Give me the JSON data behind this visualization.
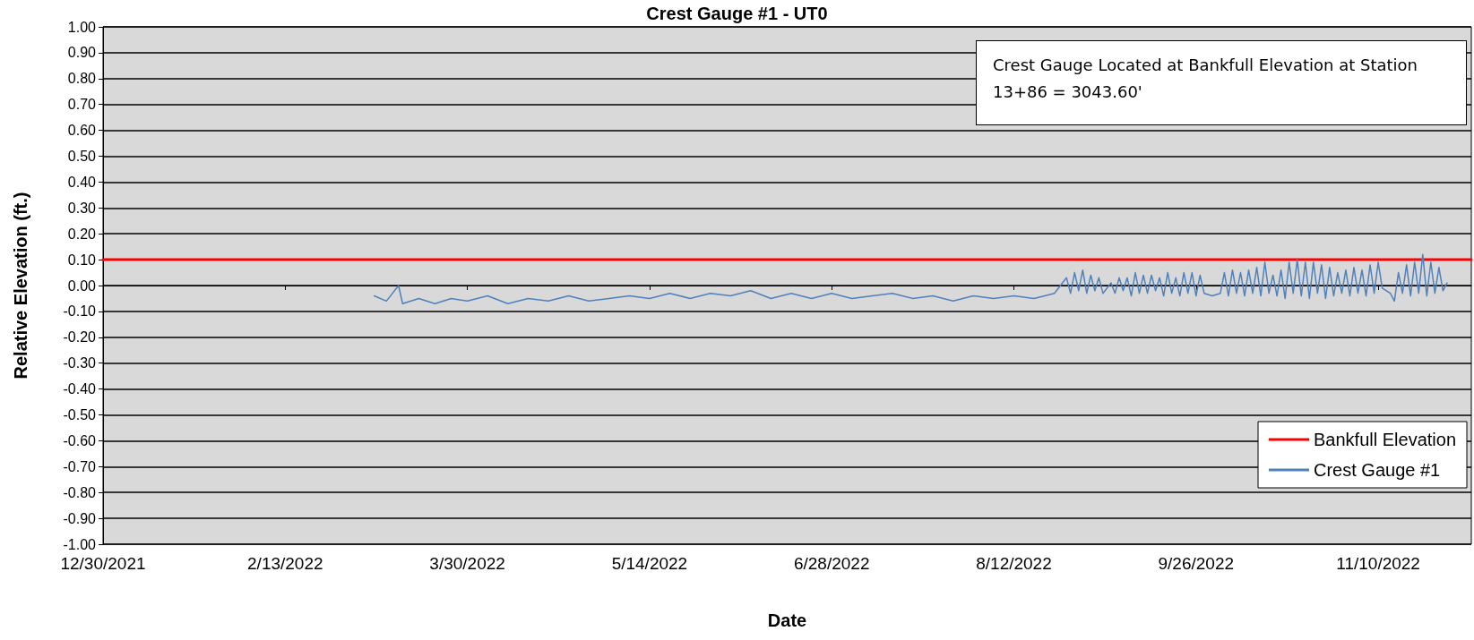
{
  "chart_data": {
    "type": "line",
    "title": "Crest Gauge #1 - UT0",
    "xlabel": "Date",
    "ylabel": "Relative Elevation (ft.)",
    "annotations": [
      "Crest Gauge Located at Bankfull Elevation at Station 13+86 = 3043.60'"
    ],
    "xlim": [
      "2021-12-30",
      "2022-12-03"
    ],
    "xticks": [
      {
        "value": "2021-12-30",
        "label": "12/30/2021"
      },
      {
        "value": "2022-02-13",
        "label": "2/13/2022"
      },
      {
        "value": "2022-03-30",
        "label": "3/30/2022"
      },
      {
        "value": "2022-05-14",
        "label": "5/14/2022"
      },
      {
        "value": "2022-06-28",
        "label": "6/28/2022"
      },
      {
        "value": "2022-08-12",
        "label": "8/12/2022"
      },
      {
        "value": "2022-09-26",
        "label": "9/26/2022"
      },
      {
        "value": "2022-11-10",
        "label": "11/10/2022"
      }
    ],
    "ylim": [
      -1,
      1
    ],
    "yticks": [
      {
        "value": -1,
        "label": "-1.00"
      },
      {
        "value": -0.9,
        "label": "-0.90"
      },
      {
        "value": -0.8,
        "label": "-0.80"
      },
      {
        "value": -0.7,
        "label": "-0.70"
      },
      {
        "value": -0.6,
        "label": "-0.60"
      },
      {
        "value": -0.5,
        "label": "-0.50"
      },
      {
        "value": -0.4,
        "label": "-0.40"
      },
      {
        "value": -0.3,
        "label": "-0.30"
      },
      {
        "value": -0.2,
        "label": "-0.20"
      },
      {
        "value": -0.1,
        "label": "-0.10"
      },
      {
        "value": 0,
        "label": "0.00"
      },
      {
        "value": 0.1,
        "label": "0.10"
      },
      {
        "value": 0.2,
        "label": "0.20"
      },
      {
        "value": 0.3,
        "label": "0.30"
      },
      {
        "value": 0.4,
        "label": "0.40"
      },
      {
        "value": 0.5,
        "label": "0.50"
      },
      {
        "value": 0.6,
        "label": "0.60"
      },
      {
        "value": 0.7,
        "label": "0.70"
      },
      {
        "value": 0.8,
        "label": "0.80"
      },
      {
        "value": 0.9,
        "label": "0.90"
      },
      {
        "value": 1,
        "label": "1.00"
      }
    ],
    "grid": "y",
    "legend": "bottom right",
    "marker": "none",
    "line_style": "solid",
    "series": [
      {
        "name": "Bankfull Elevation",
        "color": "#ff0000",
        "x": [
          "2021-12-30",
          "2022-12-03"
        ],
        "values": [
          0.1,
          0.1
        ]
      },
      {
        "name": "Crest Gauge #1",
        "color": "#4f81bd",
        "x": [
          "2022-03-07",
          "2022-03-10",
          "2022-03-13",
          "2022-03-14",
          "2022-03-18",
          "2022-03-22",
          "2022-03-26",
          "2022-03-30",
          "2022-04-04",
          "2022-04-09",
          "2022-04-14",
          "2022-04-19",
          "2022-04-24",
          "2022-04-29",
          "2022-05-04",
          "2022-05-09",
          "2022-05-14",
          "2022-05-19",
          "2022-05-24",
          "2022-05-29",
          "2022-06-03",
          "2022-06-08",
          "2022-06-13",
          "2022-06-18",
          "2022-06-23",
          "2022-06-28",
          "2022-07-03",
          "2022-07-08",
          "2022-07-13",
          "2022-07-18",
          "2022-07-23",
          "2022-07-28",
          "2022-08-02",
          "2022-08-07",
          "2022-08-12",
          "2022-08-17",
          "2022-08-22",
          "2022-08-25",
          "2022-08-26",
          "2022-08-27",
          "2022-08-28",
          "2022-08-29",
          "2022-08-30",
          "2022-08-31",
          "2022-09-01",
          "2022-09-02",
          "2022-09-03",
          "2022-09-05",
          "2022-09-06",
          "2022-09-07",
          "2022-09-08",
          "2022-09-09",
          "2022-09-10",
          "2022-09-11",
          "2022-09-12",
          "2022-09-13",
          "2022-09-14",
          "2022-09-15",
          "2022-09-16",
          "2022-09-17",
          "2022-09-18",
          "2022-09-19",
          "2022-09-20",
          "2022-09-21",
          "2022-09-22",
          "2022-09-23",
          "2022-09-24",
          "2022-09-25",
          "2022-09-26",
          "2022-09-27",
          "2022-09-28",
          "2022-09-30",
          "2022-10-02",
          "2022-10-03",
          "2022-10-04",
          "2022-10-05",
          "2022-10-06",
          "2022-10-07",
          "2022-10-08",
          "2022-10-09",
          "2022-10-10",
          "2022-10-11",
          "2022-10-12",
          "2022-10-13",
          "2022-10-14",
          "2022-10-15",
          "2022-10-16",
          "2022-10-17",
          "2022-10-18",
          "2022-10-19",
          "2022-10-20",
          "2022-10-21",
          "2022-10-22",
          "2022-10-23",
          "2022-10-24",
          "2022-10-25",
          "2022-10-26",
          "2022-10-27",
          "2022-10-28",
          "2022-10-29",
          "2022-10-30",
          "2022-10-31",
          "2022-11-01",
          "2022-11-02",
          "2022-11-03",
          "2022-11-04",
          "2022-11-05",
          "2022-11-06",
          "2022-11-07",
          "2022-11-08",
          "2022-11-09",
          "2022-11-10",
          "2022-11-11",
          "2022-11-13",
          "2022-11-14",
          "2022-11-15",
          "2022-11-16",
          "2022-11-17",
          "2022-11-18",
          "2022-11-19",
          "2022-11-20",
          "2022-11-21",
          "2022-11-22",
          "2022-11-23",
          "2022-11-24",
          "2022-11-25",
          "2022-11-26",
          "2022-11-27"
        ],
        "values": [
          -0.04,
          -0.06,
          0.0,
          -0.07,
          -0.05,
          -0.07,
          -0.05,
          -0.06,
          -0.04,
          -0.07,
          -0.05,
          -0.06,
          -0.04,
          -0.06,
          -0.05,
          -0.04,
          -0.05,
          -0.03,
          -0.05,
          -0.03,
          -0.04,
          -0.02,
          -0.05,
          -0.03,
          -0.05,
          -0.03,
          -0.05,
          -0.04,
          -0.03,
          -0.05,
          -0.04,
          -0.06,
          -0.04,
          -0.05,
          -0.04,
          -0.05,
          -0.03,
          0.03,
          -0.03,
          0.05,
          -0.02,
          0.06,
          -0.03,
          0.04,
          -0.02,
          0.03,
          -0.03,
          0.01,
          -0.03,
          0.03,
          -0.02,
          0.03,
          -0.04,
          0.05,
          -0.03,
          0.04,
          -0.03,
          0.04,
          -0.02,
          0.03,
          -0.04,
          0.05,
          -0.03,
          0.03,
          -0.04,
          0.05,
          -0.03,
          0.05,
          -0.04,
          0.04,
          -0.03,
          -0.04,
          -0.03,
          0.05,
          -0.04,
          0.06,
          -0.03,
          0.05,
          -0.04,
          0.06,
          -0.03,
          0.07,
          -0.04,
          0.09,
          -0.03,
          0.04,
          -0.04,
          0.06,
          -0.05,
          0.09,
          -0.03,
          0.1,
          -0.04,
          0.09,
          -0.05,
          0.09,
          -0.03,
          0.08,
          -0.05,
          0.07,
          -0.04,
          0.05,
          -0.03,
          0.06,
          -0.04,
          0.07,
          -0.03,
          0.06,
          -0.04,
          0.08,
          -0.03,
          0.09,
          -0.01,
          -0.03,
          -0.06,
          0.05,
          -0.03,
          0.08,
          -0.04,
          0.09,
          -0.03,
          0.12,
          -0.04,
          0.09,
          -0.03,
          0.07,
          -0.02,
          0.01
        ]
      }
    ]
  }
}
